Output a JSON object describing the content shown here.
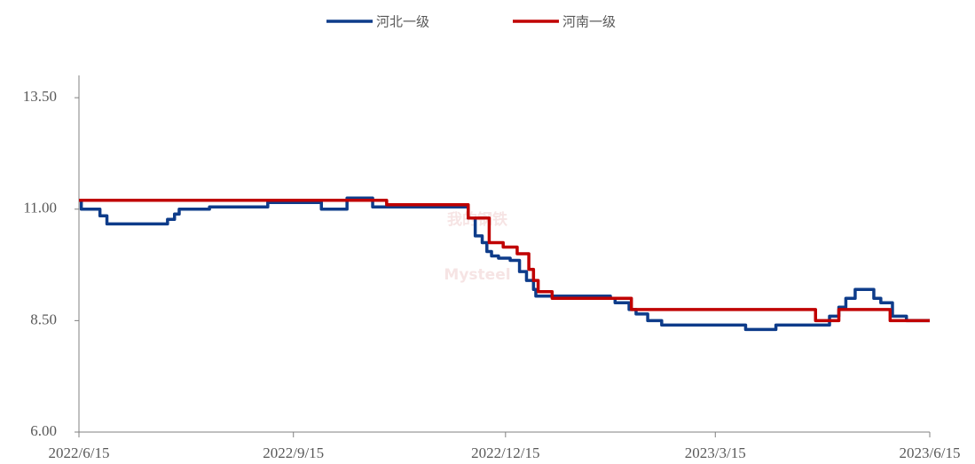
{
  "chart_data": {
    "type": "line",
    "step": "post",
    "watermark": [
      "我的钢铁",
      "Mysteel"
    ],
    "xlim": [
      "2022/6/15",
      "2023/6/15"
    ],
    "xticks": [
      "2022/6/15",
      "2022/9/15",
      "2022/12/15",
      "2023/3/15",
      "2023/6/15"
    ],
    "ylim": [
      6,
      14
    ],
    "yticks": [
      {
        "value": 6,
        "label": "6.00"
      },
      {
        "value": 8.5,
        "label": "8.50"
      },
      {
        "value": 11,
        "label": "11.00"
      },
      {
        "value": 13.5,
        "label": "13.50"
      }
    ],
    "grid": false,
    "legend": "top",
    "series": [
      {
        "name": "河北一级",
        "color": "#0e3c8a",
        "x": [
          "2022/6/15",
          "2022/6/16",
          "2022/6/24",
          "2022/6/27",
          "2022/7/23",
          "2022/7/26",
          "2022/7/28",
          "2022/8/10",
          "2022/9/4",
          "2022/9/27",
          "2022/10/8",
          "2022/10/19",
          "2022/11/29",
          "2022/12/2",
          "2022/12/5",
          "2022/12/7",
          "2022/12/9",
          "2022/12/12",
          "2022/12/17",
          "2022/12/21",
          "2022/12/24",
          "2022/12/27",
          "2022/12/28",
          "2023/1/29",
          "2023/1/31",
          "2023/2/6",
          "2023/2/9",
          "2023/2/14",
          "2023/2/20",
          "2023/3/28",
          "2023/4/10",
          "2023/5/3",
          "2023/5/7",
          "2023/5/10",
          "2023/5/14",
          "2023/5/22",
          "2023/5/25",
          "2023/5/30",
          "2023/6/5",
          "2023/6/15"
        ],
        "values": [
          11.2,
          11.0,
          10.85,
          10.67,
          10.77,
          10.89,
          11.0,
          11.05,
          11.15,
          11.0,
          11.25,
          11.05,
          10.8,
          10.4,
          10.25,
          10.05,
          9.95,
          9.9,
          9.85,
          9.6,
          9.4,
          9.2,
          9.05,
          9.0,
          8.9,
          8.75,
          8.65,
          8.5,
          8.4,
          8.3,
          8.4,
          8.6,
          8.8,
          9.0,
          9.2,
          9.0,
          8.9,
          8.6,
          8.5,
          8.5
        ]
      },
      {
        "name": "河南一级",
        "color": "#c00000",
        "x": [
          "2022/6/15",
          "2022/10/25",
          "2022/11/29",
          "2022/12/8",
          "2022/12/14",
          "2022/12/20",
          "2022/12/25",
          "2022/12/27",
          "2022/12/29",
          "2023/1/4",
          "2023/2/7",
          "2023/4/27",
          "2023/5/7",
          "2023/5/29",
          "2023/6/15"
        ],
        "values": [
          11.2,
          11.1,
          10.8,
          10.25,
          10.15,
          10.0,
          9.65,
          9.4,
          9.15,
          9.0,
          8.75,
          8.5,
          8.75,
          8.5,
          8.5
        ]
      }
    ]
  }
}
